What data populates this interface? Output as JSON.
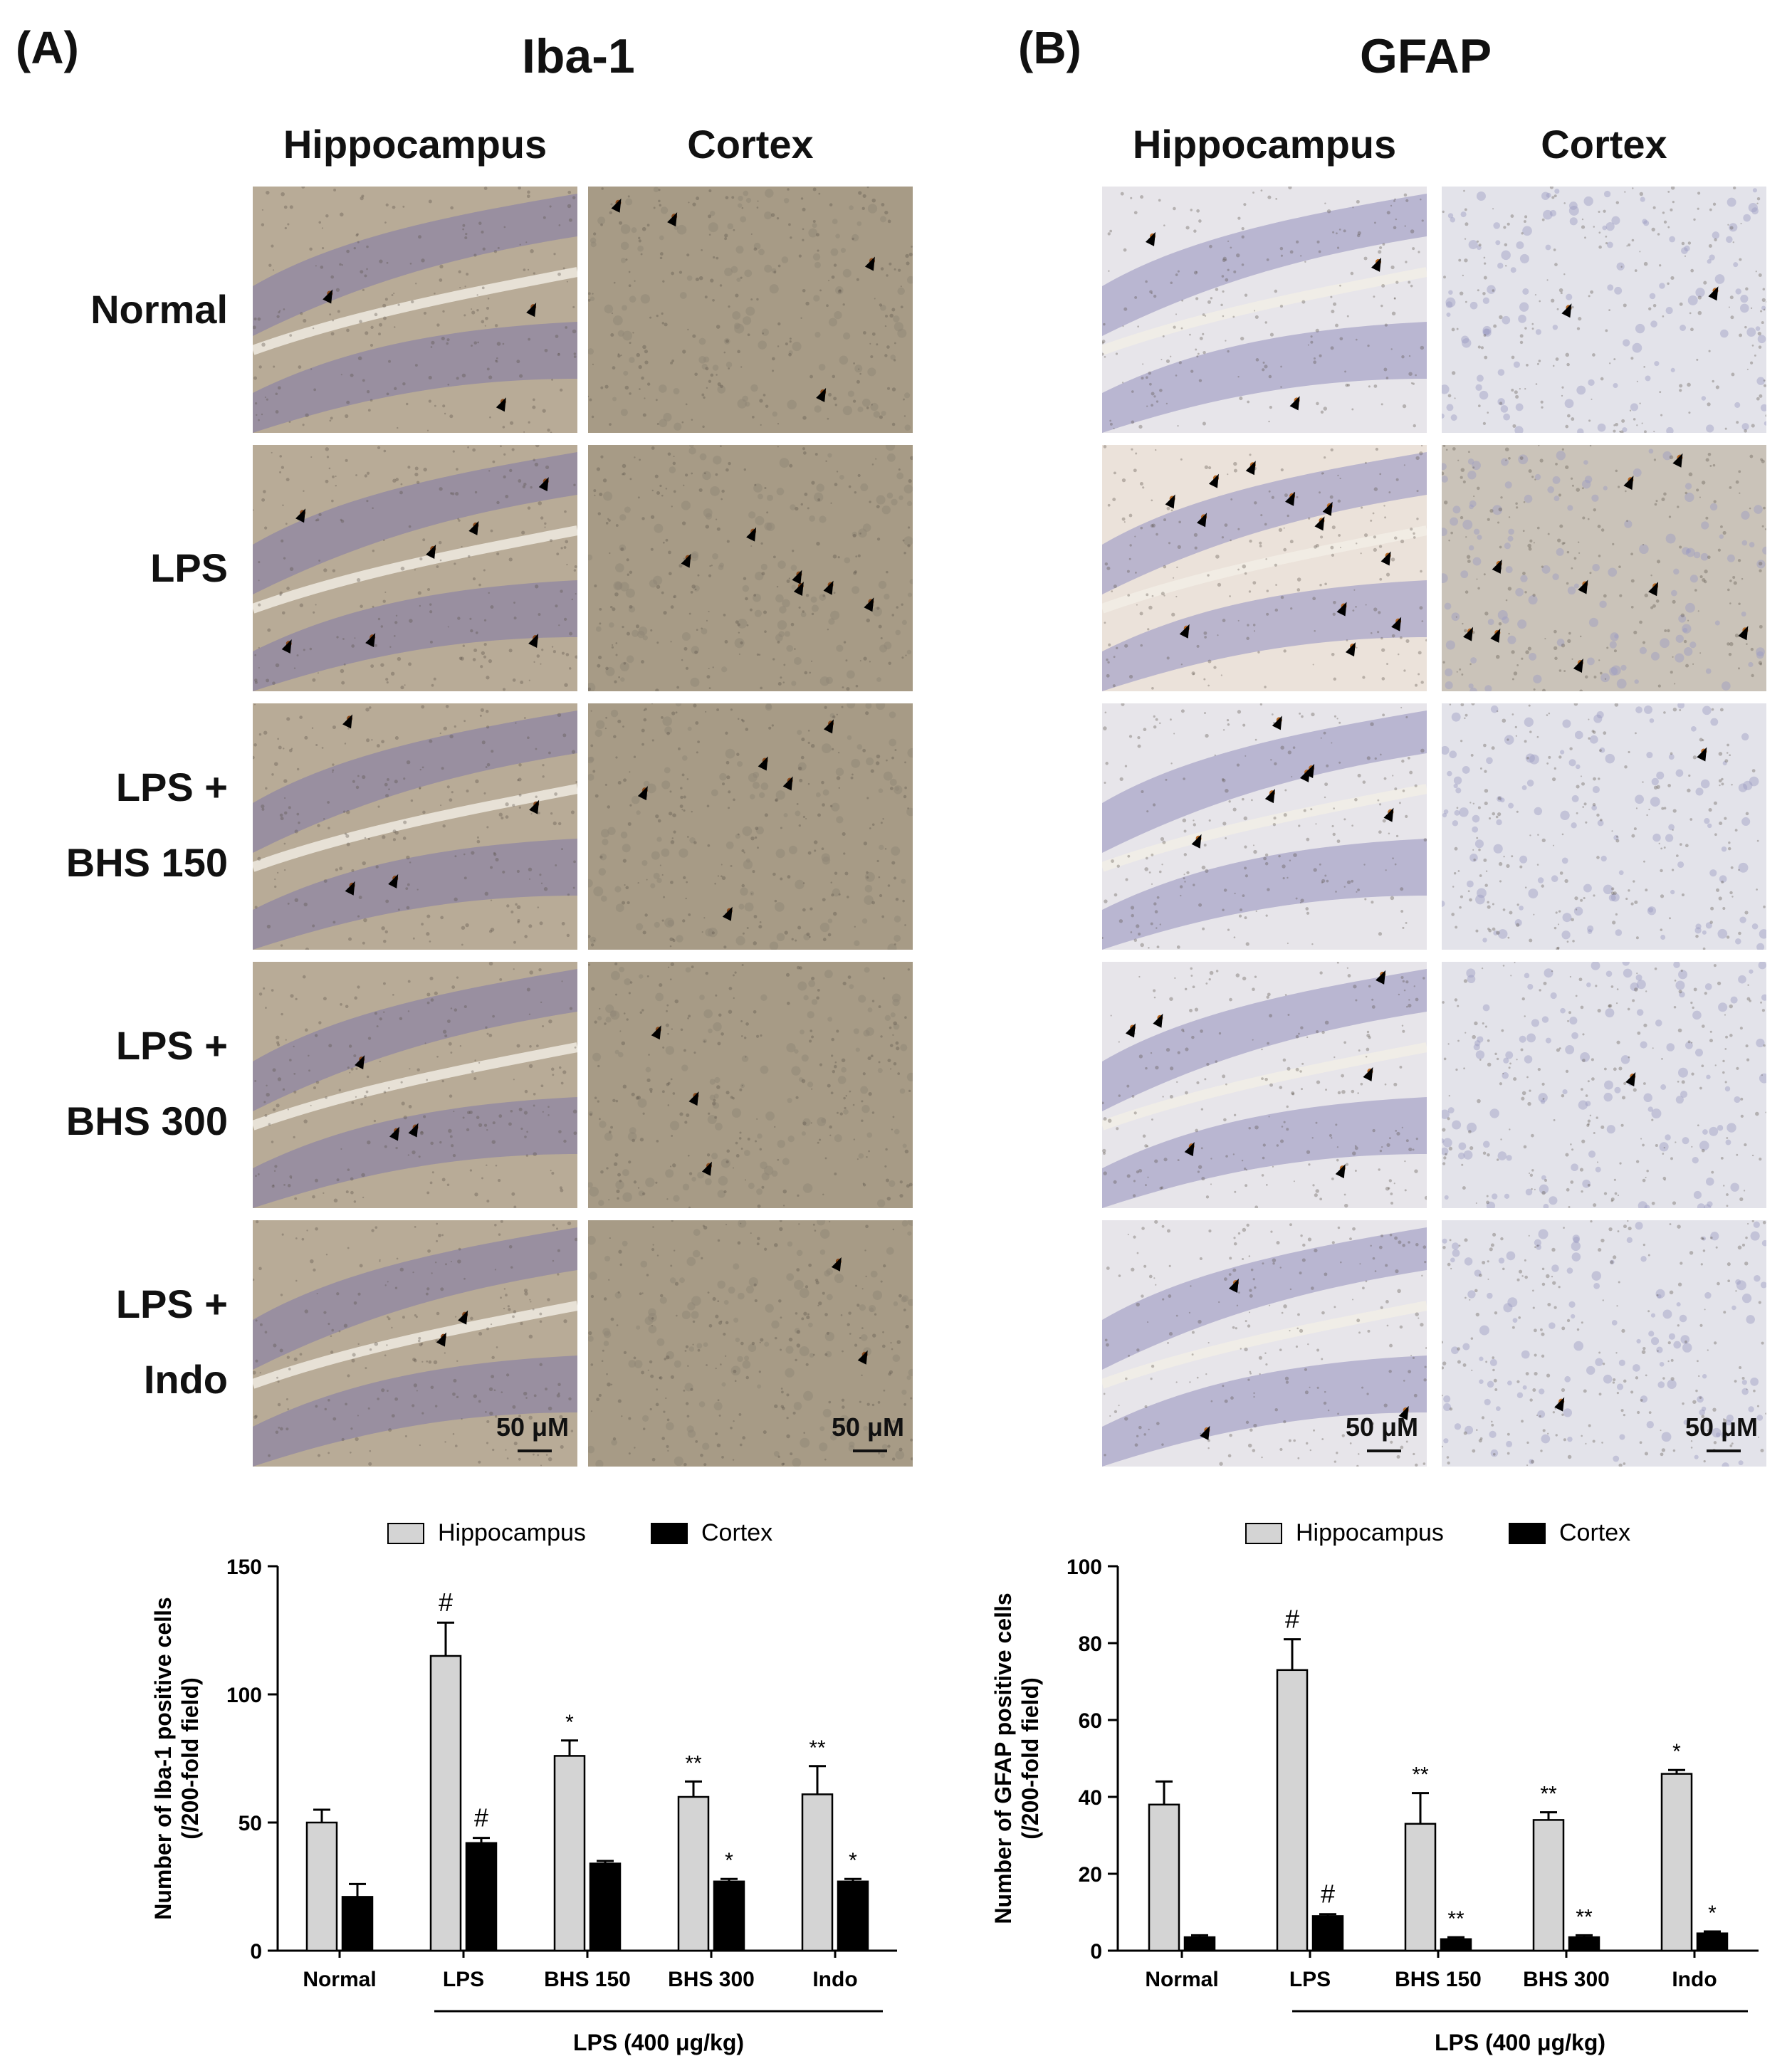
{
  "panels": [
    {
      "letter": "(A)",
      "stain": "Iba-1",
      "columns": [
        "Hippocampus",
        "Cortex"
      ],
      "rows": [
        "Normal",
        "LPS",
        "LPS +|BHS 150",
        "LPS +|BHS 300",
        "LPS +|Indo"
      ],
      "scale_bar": "50 μM",
      "colors": {
        "hippocampus_bg": "#b8ab97",
        "hippocampus_band": "#8f86a3",
        "cortex_bg": "#a79b86",
        "marker": "#8a4a1c"
      }
    },
    {
      "letter": "(B)",
      "stain": "GFAP",
      "columns": [
        "Hippocampus",
        "Cortex"
      ],
      "rows": [
        "",
        "",
        "",
        "",
        ""
      ],
      "scale_bar": "50 μM",
      "colors": {
        "hippocampus_bg": "#e7e5ea",
        "hippocampus_band": "#a9a6c8",
        "cortex_bg": "#e3e3ea",
        "marker": "#b86a26"
      }
    }
  ],
  "chart_data": [
    {
      "type": "bar",
      "categories": [
        "Normal",
        "LPS",
        "BHS 150",
        "BHS 300",
        "Indo"
      ],
      "series": [
        {
          "name": "Hippocampus",
          "values": [
            50,
            115,
            76,
            60,
            61
          ],
          "errors": [
            5,
            13,
            6,
            6,
            11
          ],
          "annotations": [
            "",
            "#",
            "*",
            "**",
            "**"
          ],
          "color": "#d4d4d4"
        },
        {
          "name": "Cortex",
          "values": [
            21,
            42,
            34,
            27,
            27
          ],
          "errors": [
            5,
            2,
            1,
            1,
            1
          ],
          "annotations": [
            "",
            "#",
            "",
            "*",
            "*"
          ],
          "color": "#000000"
        }
      ],
      "ylabel": "Number of Iba-1 positive cells (/200-fold field)",
      "ylim": [
        0,
        150
      ],
      "yticks": [
        0,
        50,
        100,
        150
      ],
      "group_label": "LPS (400 μg/kg)",
      "legend": "top"
    },
    {
      "type": "bar",
      "categories": [
        "Normal",
        "LPS",
        "BHS 150",
        "BHS 300",
        "Indo"
      ],
      "series": [
        {
          "name": "Hippocampus",
          "values": [
            38,
            73,
            33,
            34,
            46
          ],
          "errors": [
            6,
            8,
            8,
            2,
            1
          ],
          "annotations": [
            "",
            "#",
            "**",
            "**",
            "*"
          ],
          "color": "#d4d4d4"
        },
        {
          "name": "Cortex",
          "values": [
            3.5,
            9,
            3,
            3.5,
            4.5
          ],
          "errors": [
            0.5,
            0.5,
            0.5,
            0.5,
            0.5
          ],
          "annotations": [
            "",
            "#",
            "**",
            "**",
            "*"
          ],
          "color": "#000000"
        }
      ],
      "ylabel": "Number of GFAP positive cells (/200-fold field)",
      "ylim": [
        0,
        100
      ],
      "yticks": [
        0,
        20,
        40,
        60,
        80,
        100
      ],
      "group_label": "LPS (400 μg/kg)",
      "legend": "top"
    }
  ]
}
